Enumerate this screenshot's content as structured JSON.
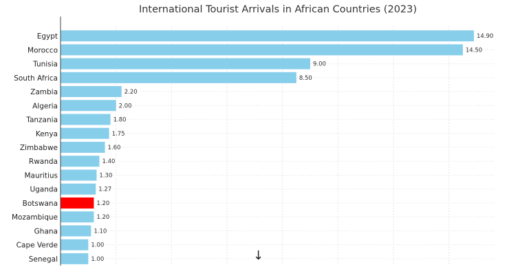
{
  "chart_data": {
    "type": "bar",
    "orientation": "horizontal",
    "title": "International Tourist Arrivals in African Countries (2023)",
    "categories": [
      "Egypt",
      "Morocco",
      "Tunisia",
      "South Africa",
      "Zambia",
      "Algeria",
      "Tanzania",
      "Kenya",
      "Zimbabwe",
      "Rwanda",
      "Mauritius",
      "Uganda",
      "Botswana",
      "Mozambique",
      "Ghana",
      "Cape Verde",
      "Senegal"
    ],
    "values": [
      14.9,
      14.5,
      9.0,
      8.5,
      2.2,
      2.0,
      1.8,
      1.75,
      1.6,
      1.4,
      1.3,
      1.27,
      1.2,
      1.2,
      1.1,
      1.0,
      1.0
    ],
    "value_labels": [
      "14.90",
      "14.50",
      "9.00",
      "8.50",
      "2.20",
      "2.00",
      "1.80",
      "1.75",
      "1.60",
      "1.40",
      "1.30",
      "1.27",
      "1.20",
      "1.20",
      "1.10",
      "1.00",
      "1.00"
    ],
    "highlight": "Botswana",
    "colors": {
      "bar": "#87ceeb",
      "highlight": "#ff0000"
    },
    "xlim": [
      0,
      15.6
    ],
    "grid": true,
    "xlabel": "",
    "ylabel": ""
  },
  "ui": {
    "scroll_icon": "arrow-down-icon",
    "scroll_glyph": "↓"
  }
}
